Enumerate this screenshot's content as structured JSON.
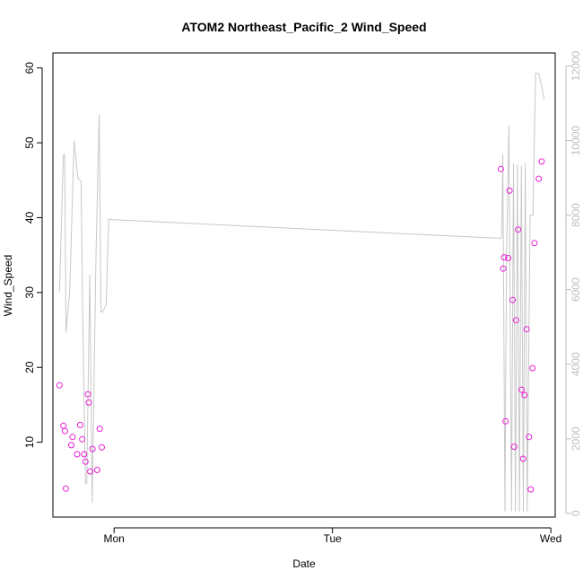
{
  "chart_data": {
    "type": "scatter",
    "title": "ATOM2 Northeast_Pacific_2 Wind_Speed",
    "xlabel": "Date",
    "ylabel": "Wind_Speed",
    "x_ticks": [
      {
        "label": "Mon",
        "value": 0.0
      },
      {
        "label": "Tue",
        "value": 1.0
      },
      {
        "label": "Wed",
        "value": 2.0
      }
    ],
    "xlim": [
      -0.28,
      2.02
    ],
    "ylim": [
      0,
      62
    ],
    "y_ticks": [
      10,
      20,
      30,
      40,
      50,
      60
    ],
    "y2lim": [
      -100,
      12350
    ],
    "y2_ticks": [
      0,
      2000,
      4000,
      6000,
      8000,
      10000,
      12000
    ],
    "grid": false,
    "colors": {
      "points": "#e61fd3",
      "line": "#c8c8c8",
      "axis": "#000000",
      "right_axis": "#bebebe"
    },
    "series": [
      {
        "kind": "points",
        "axis": "left",
        "x": [
          -0.25,
          -0.232,
          -0.225,
          -0.221,
          -0.196,
          -0.19,
          -0.169,
          -0.155,
          -0.146,
          -0.137,
          -0.131,
          -0.12,
          -0.116,
          -0.109,
          -0.099,
          -0.077,
          -0.066,
          -0.056,
          1.771,
          1.782,
          1.786,
          1.793,
          1.805,
          1.811,
          1.825,
          1.832,
          1.841,
          1.85,
          1.866,
          1.873,
          1.88,
          1.889,
          1.9,
          1.908,
          1.916,
          1.925,
          1.945,
          1.958
        ],
        "y": [
          17.6,
          12.2,
          11.5,
          3.8,
          9.6,
          10.7,
          8.4,
          12.3,
          10.4,
          8.4,
          7.4,
          16.4,
          15.3,
          6.1,
          9.1,
          6.3,
          11.8,
          9.3,
          46.5,
          33.2,
          34.7,
          12.8,
          34.6,
          43.6,
          29.0,
          9.4,
          26.3,
          38.4,
          17.0,
          7.8,
          16.3,
          25.1,
          10.7,
          3.7,
          19.9,
          36.6,
          45.2,
          47.5
        ]
      },
      {
        "kind": "line",
        "axis": "right",
        "x": [
          -0.25,
          -0.232,
          -0.226,
          -0.22,
          -0.203,
          -0.183,
          -0.166,
          -0.151,
          -0.143,
          -0.131,
          -0.125,
          -0.111,
          -0.1,
          -0.083,
          -0.068,
          -0.06,
          -0.054,
          -0.036,
          -0.025,
          -0.018,
          1.766,
          1.775,
          1.78,
          1.79,
          1.797,
          1.808,
          1.82,
          1.829,
          1.838,
          1.847,
          1.856,
          1.865,
          1.874,
          1.883,
          1.892,
          1.905,
          1.918,
          1.93,
          1.944,
          1.96,
          1.97
        ],
        "y": [
          5950,
          9620,
          9620,
          4850,
          5950,
          10000,
          9000,
          8900,
          5050,
          800,
          800,
          6400,
          280,
          6900,
          10700,
          5400,
          5400,
          5600,
          7880,
          7880,
          7380,
          7380,
          9640,
          50,
          6840,
          10400,
          50,
          9380,
          50,
          9360,
          50,
          9320,
          50,
          9400,
          50,
          8000,
          8000,
          11800,
          11800,
          11400,
          11100
        ]
      }
    ]
  }
}
